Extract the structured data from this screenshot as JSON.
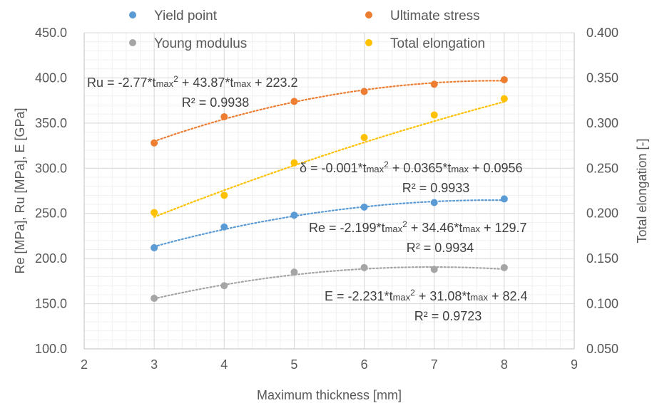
{
  "chart_data": {
    "type": "scatter",
    "xlabel": "Maximum thickness [mm]",
    "ylabel": "Re [MPa], Ru [MPa], E [GPa]",
    "y2label": "Total elongation [-]",
    "xlim": [
      2,
      9
    ],
    "ylim": [
      100,
      450
    ],
    "y2lim": [
      0.05,
      0.4
    ],
    "x_ticks": [
      "2",
      "3",
      "4",
      "5",
      "6",
      "7",
      "8",
      "9"
    ],
    "y_ticks": [
      "100.0",
      "150.0",
      "200.0",
      "250.0",
      "300.0",
      "350.0",
      "400.0",
      "450.0"
    ],
    "y2_ticks": [
      "0.050",
      "0.100",
      "0.150",
      "0.200",
      "0.250",
      "0.300",
      "0.350",
      "0.400"
    ],
    "grid": true,
    "legend_position": "top",
    "series": [
      {
        "name": "Yield point",
        "color": "#5b9bd5",
        "axis": "left",
        "x": [
          3,
          4,
          5,
          6,
          7,
          8
        ],
        "y": [
          212,
          235,
          248,
          257,
          262,
          266
        ],
        "trend": {
          "a": -2.199,
          "b": 34.46,
          "c": 129.7
        },
        "equation": {
          "lead": "Re = -2.199*t",
          "sub1": "max",
          "mid": "2",
          "rest1": " + 34.46*t",
          "sub2": "max",
          "tail": " + 129.7"
        },
        "r2": "R² = 0.9934"
      },
      {
        "name": "Ultimate stress",
        "color": "#ed7d31",
        "axis": "left",
        "x": [
          3,
          4,
          5,
          6,
          7,
          8
        ],
        "y": [
          328,
          357,
          374,
          385,
          393,
          398
        ],
        "trend": {
          "a": -2.77,
          "b": 43.87,
          "c": 223.2
        },
        "equation": {
          "lead": "Ru = -2.77*t",
          "sub1": "max",
          "mid": "2",
          "rest1": " + 43.87*t",
          "sub2": "max",
          "tail": " + 223.2"
        },
        "r2": "R² = 0.9938"
      },
      {
        "name": "Young modulus",
        "color": "#a5a5a5",
        "axis": "left",
        "x": [
          3,
          4,
          5,
          6,
          7,
          8
        ],
        "y": [
          156,
          170,
          185,
          190,
          188,
          190
        ],
        "trend": {
          "a": -2.231,
          "b": 31.08,
          "c": 82.4
        },
        "equation": {
          "lead": "E = -2.231*t",
          "sub1": "max",
          "mid": "2",
          "rest1": " + 31.08*t",
          "sub2": "max",
          "tail": " + 82.4"
        },
        "r2": "R² = 0.9723"
      },
      {
        "name": "Total elongation",
        "color": "#ffc000",
        "axis": "right",
        "x": [
          3,
          4,
          5,
          6,
          7,
          8
        ],
        "y": [
          0.201,
          0.22,
          0.256,
          0.284,
          0.309,
          0.327
        ],
        "trend": {
          "a": -0.001,
          "b": 0.0365,
          "c": 0.0956
        },
        "equation": {
          "lead": "δ = -0.001*t",
          "sub1": "max",
          "mid": "2",
          "rest1": " + 0.0365*t",
          "sub2": "max",
          "tail": " + 0.0956"
        },
        "r2": "R² = 0.9933"
      }
    ]
  }
}
